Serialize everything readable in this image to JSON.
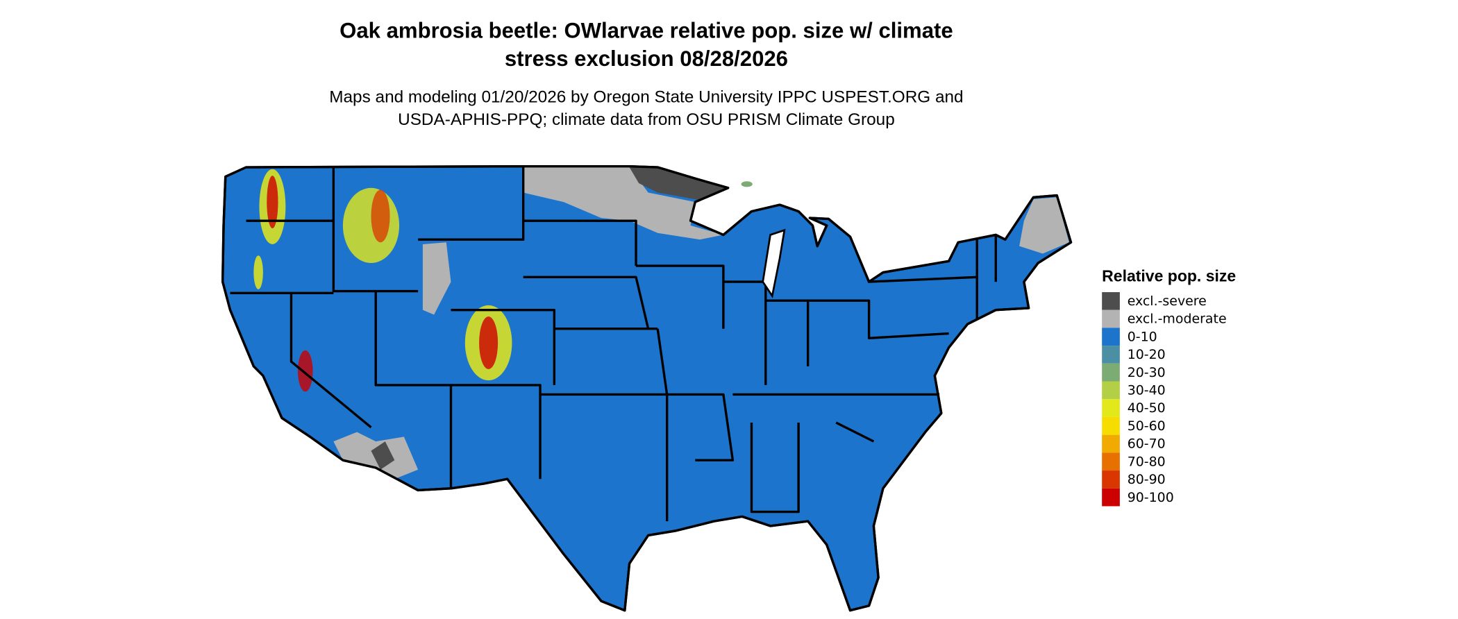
{
  "title_lines": [
    "Oak ambrosia beetle: OWlarvae relative pop. size w/ climate",
    "stress exclusion 08/28/2026"
  ],
  "subtitle_lines": [
    "Maps and modeling 01/20/2026 by Oregon State University IPPC USPEST.ORG and",
    "USDA-APHIS-PPQ; climate data from OSU PRISM Climate Group"
  ],
  "legend": {
    "title": "Relative pop. size",
    "items": [
      {
        "label": "excl.-severe",
        "color": "#4d4d4d"
      },
      {
        "label": "excl.-moderate",
        "color": "#b3b3b3"
      },
      {
        "label": "0-10",
        "color": "#1c74cc"
      },
      {
        "label": "10-20",
        "color": "#4a8fa3"
      },
      {
        "label": "20-30",
        "color": "#7dab74"
      },
      {
        "label": "30-40",
        "color": "#b3cf45"
      },
      {
        "label": "40-50",
        "color": "#e3e81a"
      },
      {
        "label": "50-60",
        "color": "#f7dc00"
      },
      {
        "label": "60-70",
        "color": "#f0aa00"
      },
      {
        "label": "70-80",
        "color": "#e87000"
      },
      {
        "label": "80-90",
        "color": "#d93600"
      },
      {
        "label": "90-100",
        "color": "#cc0000"
      }
    ]
  }
}
